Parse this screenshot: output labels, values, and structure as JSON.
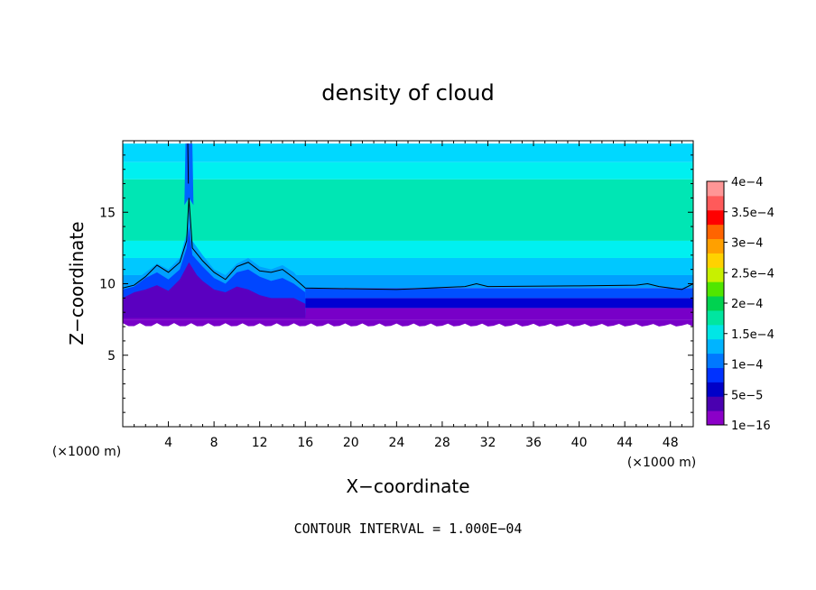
{
  "chart_data": {
    "type": "heatmap",
    "title": "density of cloud",
    "xlabel": "X−coordinate",
    "ylabel": "Z−coordinate",
    "x_unit": "(×1000 m)",
    "z_unit": "(×1000 m)",
    "xlim": [
      0,
      50
    ],
    "ylim": [
      0,
      20
    ],
    "x_ticks": [
      4,
      8,
      12,
      16,
      20,
      24,
      28,
      32,
      36,
      40,
      44,
      48
    ],
    "y_ticks": [
      5,
      10,
      15
    ],
    "footer": "CONTOUR INTERVAL = 1.000E−04",
    "colorbar": {
      "labels": [
        "4e−4",
        "3.5e−4",
        "3e−4",
        "2.5e−4",
        "2e−4",
        "1.5e−4",
        "1e−4",
        "5e−5",
        "1e−16"
      ],
      "levels": [
        0.0004,
        0.00035,
        0.0003,
        0.00025,
        0.0002,
        0.00015,
        0.0001,
        5e-05,
        1e-16
      ],
      "colors": [
        "#8b00c8",
        "#4a00b0",
        "#0000c8",
        "#0032ff",
        "#0078ff",
        "#00b4ff",
        "#00e6e6",
        "#00e6a0",
        "#00d250",
        "#50e600",
        "#c8f000",
        "#ffd200",
        "#ffa000",
        "#ff6400",
        "#ff0000",
        "#ff5a5a",
        "#ff9696"
      ]
    },
    "field": {
      "cloud_base_z": 7.5,
      "cloud_top_z": 19.8,
      "contour_1e-4_z": 9.7,
      "updraft_x": 5.8,
      "updraft_top_z": 16
    }
  }
}
